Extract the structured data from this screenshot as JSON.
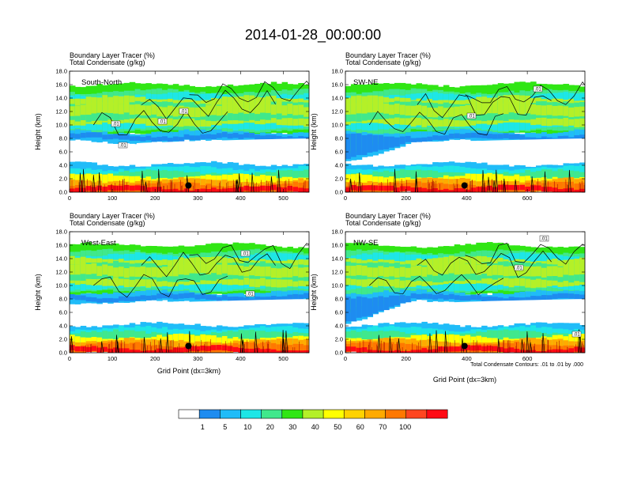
{
  "chart_data": {
    "type": "heatmap",
    "title": "2014-01-28_00:00:00",
    "shared_xlabel": "Grid Point (dx=3km)",
    "contour_note": "Total Condensate Contours: .01 to .01 by .000",
    "colorbar": {
      "colors": [
        "#ffffff",
        "#1e8cf0",
        "#20bcf8",
        "#1ee6e6",
        "#40e88c",
        "#30e614",
        "#b4f028",
        "#ffff00",
        "#ffd200",
        "#ffaa00",
        "#ff7800",
        "#ff4620",
        "#ff0a14"
      ],
      "labels": [
        "1",
        "5",
        "10",
        "20",
        "30",
        "40",
        "50",
        "60",
        "70",
        "100"
      ]
    },
    "panels": [
      {
        "name": "South-North",
        "title_lines": [
          "Boundary Layer Tracer   (%)",
          "Total Condensate   (g/kg)"
        ],
        "ylabel": "Height (km)",
        "yticks": [
          "0.0",
          "2.0",
          "4.0",
          "6.0",
          "8.0",
          "10.0",
          "12.0",
          "14.0",
          "16.0",
          "18.0"
        ],
        "ylim": [
          0,
          18
        ],
        "xlim": [
          0,
          560
        ],
        "xticks": [
          "0",
          "100",
          "200",
          "300",
          "400",
          "500"
        ],
        "xlabel": "",
        "contour_labels": [
          ".01",
          ".01",
          ".01",
          ".01"
        ],
        "marker_x": 278,
        "marker_y": 1.0
      },
      {
        "name": "SW-NE",
        "title_lines": [
          "Boundary Layer Tracer   (%)",
          "Total Condensate   (g/kg)"
        ],
        "ylabel": "Height (km)",
        "yticks": [
          "0.0",
          "2.0",
          "4.0",
          "6.0",
          "8.0",
          "10.0",
          "12.0",
          "14.0",
          "16.0",
          "18.0"
        ],
        "ylim": [
          0,
          18
        ],
        "xlim": [
          0,
          790
        ],
        "xticks": [
          "0",
          "200",
          "400",
          "600"
        ],
        "xlabel": "",
        "contour_labels": [
          ".01",
          ".01"
        ],
        "marker_x": 393,
        "marker_y": 1.0
      },
      {
        "name": "West-East",
        "title_lines": [
          "Boundary Layer Tracer   (%)",
          "Total Condensate   (g/kg)"
        ],
        "ylabel": "Height (km)",
        "yticks": [
          "0.0",
          "2.0",
          "4.0",
          "6.0",
          "8.0",
          "10.0",
          "12.0",
          "14.0",
          "16.0",
          "18.0"
        ],
        "ylim": [
          0,
          18
        ],
        "xlim": [
          0,
          560
        ],
        "xticks": [
          "0",
          "100",
          "200",
          "300",
          "400",
          "500"
        ],
        "xlabel": "",
        "contour_labels": [
          ".01",
          ".01"
        ],
        "marker_x": 278,
        "marker_y": 1.0
      },
      {
        "name": "NW-SE",
        "title_lines": [
          "Boundary Layer Tracer   (%)",
          "Total Condensate   (g/kg)"
        ],
        "ylabel": "Height (km)",
        "yticks": [
          "0.0",
          "2.0",
          "4.0",
          "6.0",
          "8.0",
          "10.0",
          "12.0",
          "14.0",
          "16.0",
          "18.0"
        ],
        "ylim": [
          0,
          18
        ],
        "xlim": [
          0,
          790
        ],
        "xticks": [
          "0",
          "200",
          "400",
          "600"
        ],
        "xlabel": "",
        "contour_labels": [
          ".01",
          ".01",
          ".01"
        ],
        "marker_x": 393,
        "marker_y": 1.0
      }
    ]
  }
}
